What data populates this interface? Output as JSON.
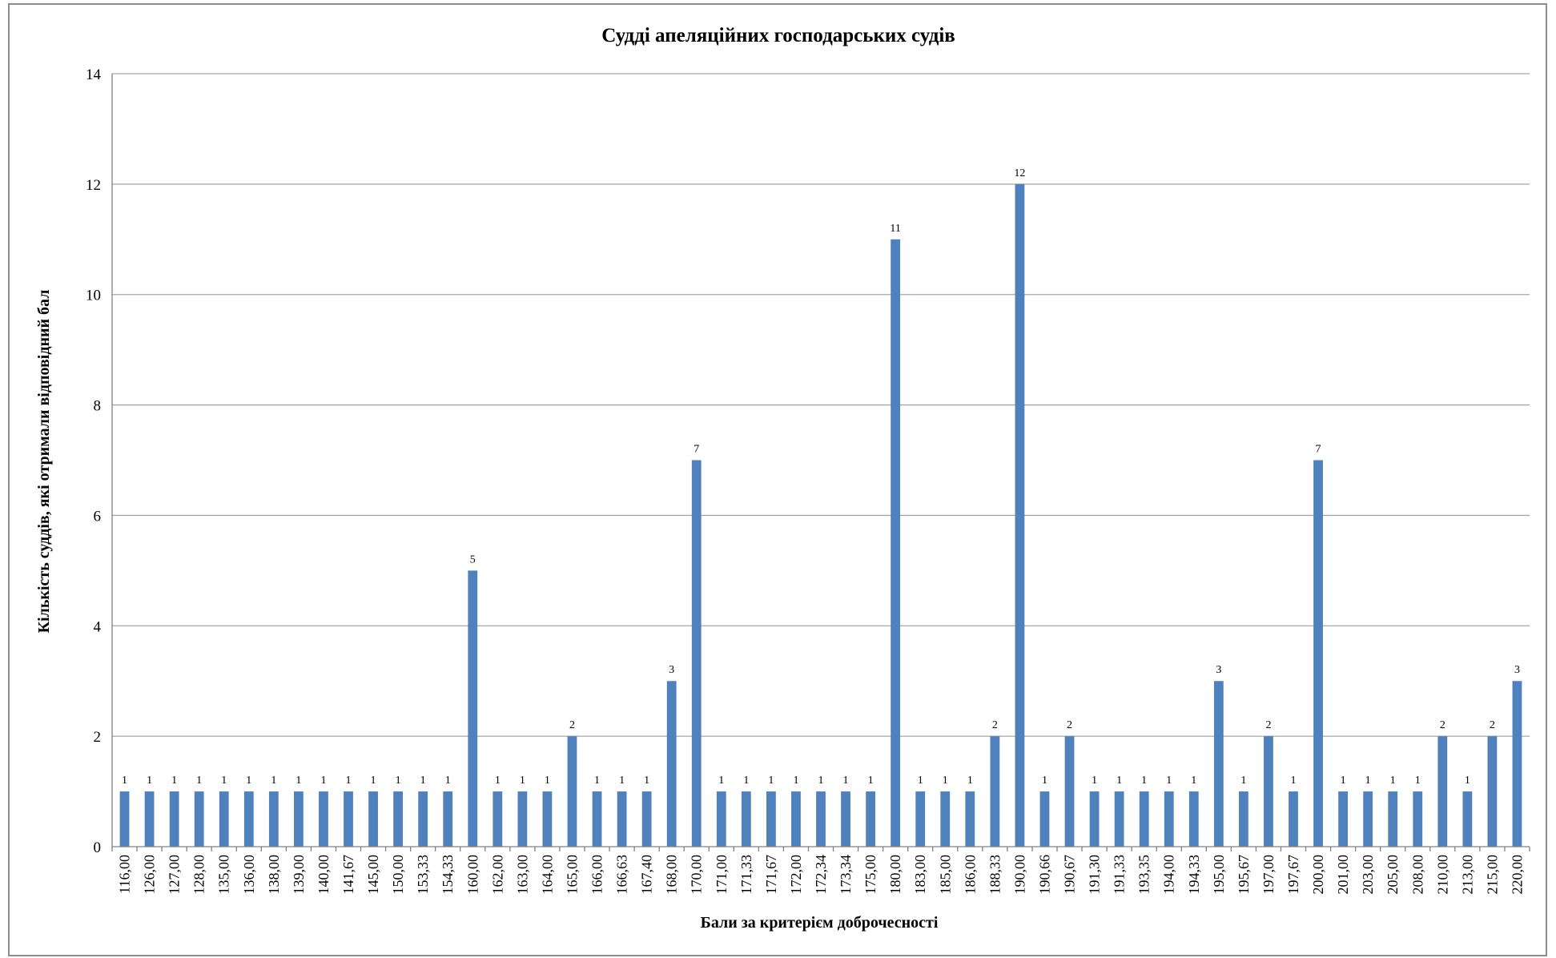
{
  "chart_data": {
    "type": "bar",
    "title": "Судді апеляційних господарських судів",
    "xlabel": "Бали за критерієм доброчесності",
    "ylabel": "Кількість суддів, які отримали відповідний бал",
    "ylim": [
      0,
      14
    ],
    "yticks": [
      "0",
      "2",
      "4",
      "6",
      "8",
      "10",
      "12",
      "14"
    ],
    "grid": true,
    "legend": "none",
    "bar_color": "#4f81bd",
    "categories": [
      "116,00",
      "126,00",
      "127,00",
      "128,00",
      "135,00",
      "136,00",
      "138,00",
      "139,00",
      "140,00",
      "141,67",
      "145,00",
      "150,00",
      "153,33",
      "154,33",
      "160,00",
      "162,00",
      "163,00",
      "164,00",
      "165,00",
      "166,00",
      "166,63",
      "167,40",
      "168,00",
      "170,00",
      "171,00",
      "171,33",
      "171,67",
      "172,00",
      "172,34",
      "173,34",
      "175,00",
      "180,00",
      "183,00",
      "185,00",
      "186,00",
      "188,33",
      "190,00",
      "190,66",
      "190,67",
      "191,30",
      "191,33",
      "193,35",
      "194,00",
      "194,33",
      "195,00",
      "195,67",
      "197,00",
      "197,67",
      "200,00",
      "201,00",
      "203,00",
      "205,00",
      "208,00",
      "210,00",
      "213,00",
      "215,00",
      "220,00"
    ],
    "values": [
      1,
      1,
      1,
      1,
      1,
      1,
      1,
      1,
      1,
      1,
      1,
      1,
      1,
      1,
      5,
      1,
      1,
      1,
      2,
      1,
      1,
      1,
      3,
      7,
      1,
      1,
      1,
      1,
      1,
      1,
      1,
      11,
      1,
      1,
      1,
      2,
      12,
      1,
      2,
      1,
      1,
      1,
      1,
      1,
      3,
      1,
      2,
      1,
      7,
      1,
      1,
      1,
      1,
      2,
      1,
      2,
      3
    ],
    "data_labels": [
      "1",
      "1",
      "1",
      "1",
      "1",
      "1",
      "1",
      "1",
      "1",
      "1",
      "1",
      "1",
      "1",
      "1",
      "5",
      "1",
      "1",
      "1",
      "2",
      "1",
      "1",
      "1",
      "3",
      "7",
      "1",
      "1",
      "1",
      "1",
      "1",
      "1",
      "1",
      "11",
      "1",
      "1",
      "1",
      "2",
      "12",
      "1",
      "2",
      "1",
      "1",
      "1",
      "1",
      "1",
      "3",
      "1",
      "2",
      "1",
      "7",
      "1",
      "1",
      "1",
      "1",
      "2",
      "1",
      "2",
      "3"
    ]
  }
}
